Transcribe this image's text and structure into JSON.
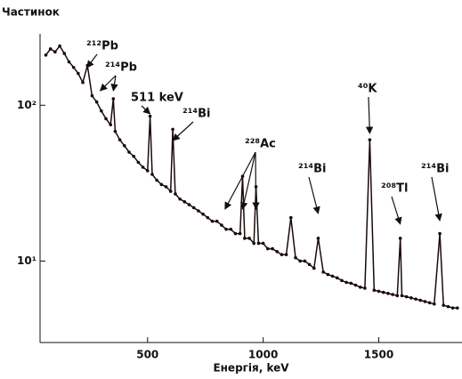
{
  "chart_data": {
    "type": "line",
    "ylabel": "Частинок",
    "xlabel": "Енергія, keV",
    "log_y": true,
    "color": "#1a0a0a",
    "x": [
      60,
      80,
      100,
      120,
      140,
      160,
      180,
      200,
      220,
      240,
      260,
      280,
      300,
      320,
      340,
      352,
      360,
      380,
      400,
      420,
      440,
      460,
      480,
      500,
      511,
      520,
      540,
      560,
      580,
      600,
      609,
      620,
      640,
      660,
      680,
      700,
      720,
      740,
      760,
      780,
      800,
      820,
      840,
      860,
      880,
      900,
      911,
      920,
      940,
      960,
      969,
      980,
      1000,
      1020,
      1040,
      1060,
      1080,
      1100,
      1120,
      1140,
      1160,
      1180,
      1200,
      1220,
      1238,
      1260,
      1280,
      1300,
      1320,
      1340,
      1360,
      1380,
      1400,
      1420,
      1440,
      1461,
      1480,
      1500,
      1520,
      1540,
      1560,
      1580,
      1593,
      1600,
      1620,
      1640,
      1660,
      1680,
      1700,
      1720,
      1740,
      1764,
      1780,
      1800,
      1820,
      1840
    ],
    "values": [
      210,
      230,
      220,
      240,
      215,
      190,
      175,
      160,
      140,
      180,
      115,
      105,
      92,
      82,
      75,
      110,
      68,
      60,
      55,
      50,
      47,
      43,
      40,
      38,
      85,
      36,
      33,
      31,
      30,
      28,
      70,
      27,
      25,
      24,
      23,
      22,
      21,
      20,
      19,
      18,
      18,
      17,
      16,
      16,
      15,
      15,
      35,
      14,
      14,
      13,
      30,
      13,
      13,
      12,
      12,
      11.5,
      11,
      11,
      19,
      10.5,
      10,
      10,
      9.5,
      9,
      14,
      8.5,
      8.2,
      8,
      7.8,
      7.5,
      7.3,
      7.2,
      7,
      6.8,
      6.7,
      60,
      6.5,
      6.4,
      6.3,
      6.2,
      6.1,
      6,
      14,
      6,
      5.9,
      5.8,
      5.7,
      5.6,
      5.5,
      5.4,
      5.3,
      15,
      5.2,
      5.1,
      5,
      5
    ],
    "xlim": [
      35,
      1860
    ],
    "xticks": [
      500,
      1000,
      1500
    ],
    "ylim": [
      3,
      280
    ],
    "yticks": [
      {
        "value": 10,
        "label": "10¹"
      },
      {
        "value": 100,
        "label": "10²"
      }
    ],
    "annotations": [
      {
        "text": "²¹²Pb",
        "x": [
          238
        ]
      },
      {
        "text": "²¹⁴Pb",
        "x": [
          295,
          352
        ]
      },
      {
        "text": "511 keV",
        "x": [
          511
        ]
      },
      {
        "text": "²¹⁴Bi",
        "x": [
          609
        ]
      },
      {
        "text": "²²⁸Ac",
        "x": [
          835,
          911,
          969
        ]
      },
      {
        "text": "²¹⁴Bi",
        "x": [
          1238
        ]
      },
      {
        "text": "⁴⁰K",
        "x": [
          1461
        ]
      },
      {
        "text": "²⁰⁸Tl",
        "x": [
          1593
        ]
      },
      {
        "text": "²¹⁴Bi",
        "x": [
          1764
        ]
      }
    ]
  }
}
